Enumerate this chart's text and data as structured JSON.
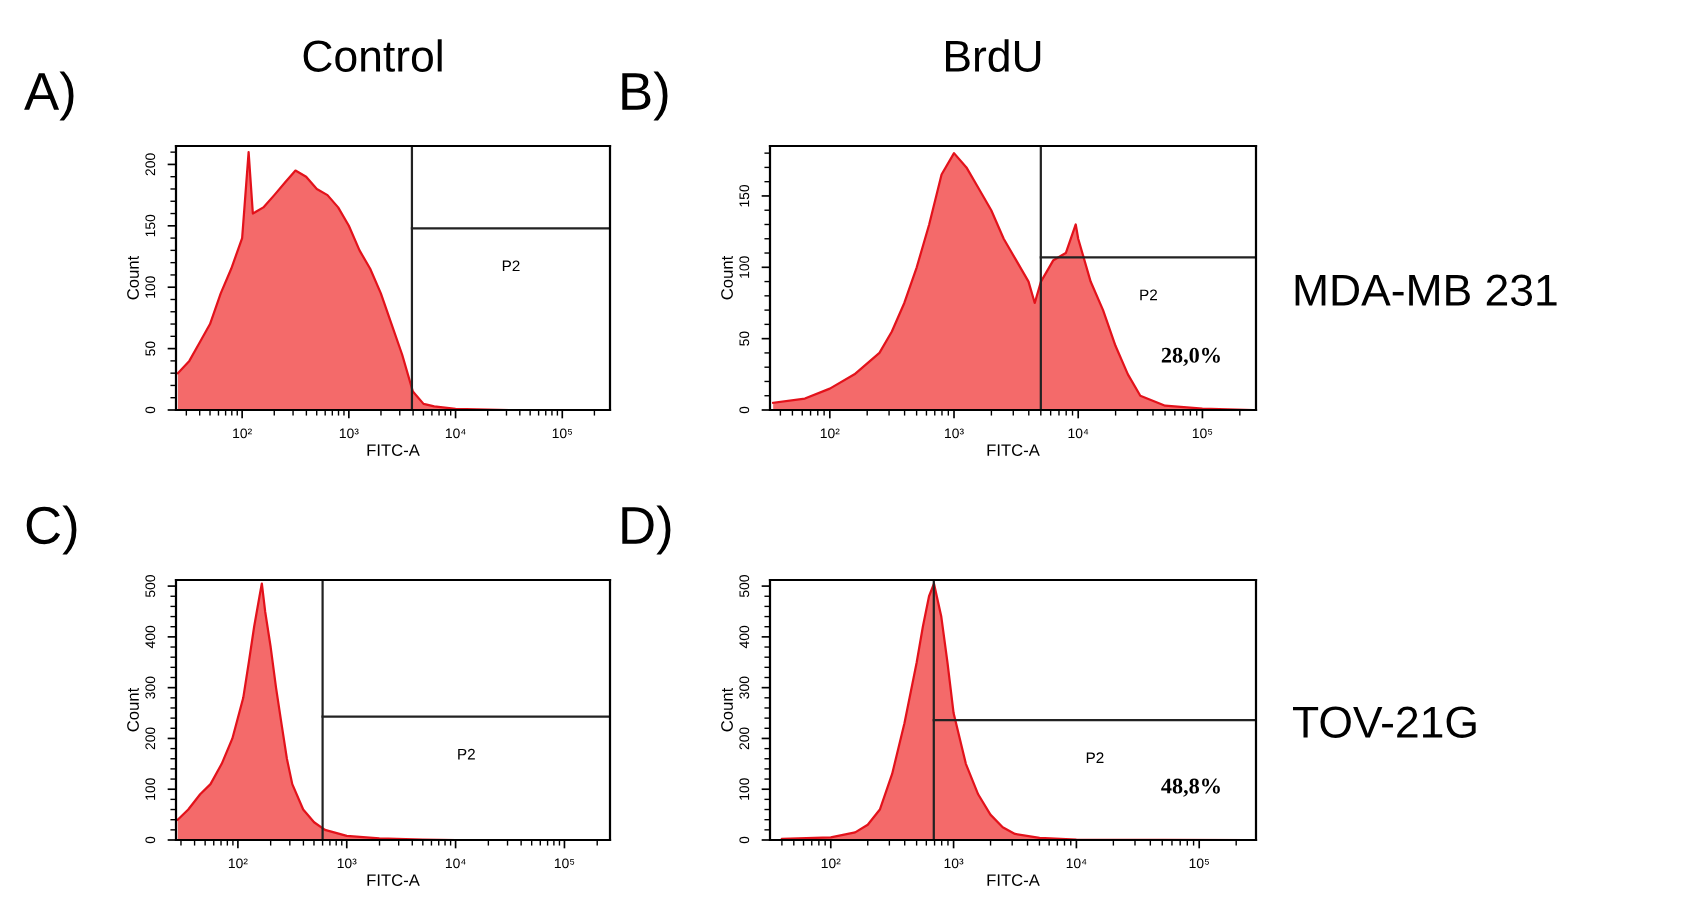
{
  "chart_data": [
    {
      "type": "area",
      "title": "A)",
      "subtitle": "Control",
      "xlabel": "FITC-A",
      "ylabel": "Count",
      "log": "x",
      "color": "#f46a6a",
      "x": [
        25,
        32,
        40,
        50,
        63,
        79,
        100,
        115,
        126,
        158,
        200,
        251,
        316,
        398,
        501,
        631,
        794,
        1000,
        1259,
        1585,
        1995,
        2512,
        3162,
        3981,
        5012,
        6310,
        10000,
        31623,
        251189
      ],
      "values": [
        30,
        40,
        55,
        70,
        95,
        115,
        140,
        210,
        160,
        165,
        175,
        185,
        195,
        190,
        180,
        175,
        165,
        150,
        130,
        115,
        95,
        70,
        45,
        15,
        5,
        3,
        1,
        0,
        0
      ],
      "xlim": [
        24,
        280000
      ],
      "xticks": [
        {
          "value": 100,
          "label": "10²"
        },
        {
          "value": 1000,
          "label": "10³"
        },
        {
          "value": 10000,
          "label": "10⁴"
        },
        {
          "value": 100000,
          "label": "10⁵"
        }
      ],
      "ylim": [
        0,
        215
      ],
      "yticks": [
        0,
        50,
        100,
        150,
        200
      ],
      "ref_lines": [
        {
          "axis": "x",
          "value": 3900,
          "label": null
        },
        {
          "axis": "y",
          "value": 148,
          "label": null
        }
      ],
      "annotations": [
        "P2"
      ]
    },
    {
      "type": "area",
      "title": "B)",
      "subtitle": "BrdU",
      "xlabel": "FITC-A",
      "ylabel": "Count",
      "log": "x",
      "color": "#f46a6a",
      "x": [
        35,
        63,
        100,
        158,
        251,
        316,
        398,
        501,
        631,
        794,
        1000,
        1259,
        1585,
        1995,
        2512,
        3162,
        3981,
        4467,
        5012,
        6310,
        7943,
        9550,
        10000,
        12589,
        15849,
        19953,
        25119,
        31623,
        50119,
        100000,
        251189
      ],
      "values": [
        5,
        8,
        15,
        25,
        40,
        55,
        75,
        100,
        130,
        165,
        180,
        170,
        155,
        140,
        120,
        105,
        90,
        75,
        90,
        105,
        110,
        130,
        120,
        90,
        70,
        45,
        25,
        10,
        3,
        1,
        0
      ],
      "xlim": [
        33,
        270000
      ],
      "xticks": [
        {
          "value": 100,
          "label": "10²"
        },
        {
          "value": 1000,
          "label": "10³"
        },
        {
          "value": 10000,
          "label": "10⁴"
        },
        {
          "value": 100000,
          "label": "10⁵"
        }
      ],
      "ylim": [
        0,
        185
      ],
      "yticks": [
        0,
        50,
        100,
        150
      ],
      "ref_lines": [
        {
          "axis": "x",
          "value": 5000,
          "label": null
        },
        {
          "axis": "y",
          "value": 107,
          "label": null
        }
      ],
      "annotations": [
        "P2",
        "28,0%",
        "MDA-MB 231"
      ]
    },
    {
      "type": "area",
      "title": "C)",
      "xlabel": "FITC-A",
      "ylabel": "Count",
      "log": "x",
      "color": "#f46a6a",
      "x": [
        28,
        35,
        45,
        56,
        71,
        89,
        112,
        126,
        141,
        158,
        166,
        178,
        200,
        224,
        251,
        282,
        316,
        398,
        501,
        631,
        1000,
        1995,
        5012,
        10000,
        251189
      ],
      "values": [
        40,
        60,
        90,
        110,
        150,
        200,
        280,
        350,
        420,
        480,
        505,
        450,
        380,
        300,
        230,
        160,
        110,
        60,
        35,
        20,
        8,
        3,
        1,
        0,
        0
      ],
      "xlim": [
        27,
        262144
      ],
      "xticks": [
        {
          "value": 100,
          "label": "10²"
        },
        {
          "value": 1000,
          "label": "10³"
        },
        {
          "value": 10000,
          "label": "10⁴"
        },
        {
          "value": 100000,
          "label": "10⁵"
        }
      ],
      "ylim": [
        0,
        512
      ],
      "yticks": [
        0,
        100,
        200,
        300,
        400,
        500
      ],
      "ref_lines": [
        {
          "axis": "x",
          "value": 600,
          "label": null
        },
        {
          "axis": "y",
          "value": 243,
          "label": null
        }
      ],
      "annotations": [
        "P2"
      ]
    },
    {
      "type": "area",
      "title": "D)",
      "xlabel": "FITC-A",
      "ylabel": "Count",
      "log": "x",
      "color": "#f46a6a",
      "x": [
        40,
        100,
        158,
        200,
        251,
        316,
        398,
        501,
        562,
        631,
        692,
        794,
        891,
        1000,
        1259,
        1585,
        1995,
        2512,
        3162,
        5012,
        10000,
        251189
      ],
      "values": [
        2,
        5,
        15,
        30,
        60,
        130,
        230,
        350,
        420,
        480,
        505,
        440,
        350,
        250,
        150,
        90,
        50,
        25,
        12,
        4,
        1,
        0
      ],
      "xlim": [
        32,
        290000
      ],
      "xticks": [
        {
          "value": 100,
          "label": "10²"
        },
        {
          "value": 1000,
          "label": "10³"
        },
        {
          "value": 10000,
          "label": "10⁴"
        },
        {
          "value": 100000,
          "label": "10⁵"
        }
      ],
      "ylim": [
        0,
        512
      ],
      "yticks": [
        0,
        100,
        200,
        300,
        400,
        500
      ],
      "ref_lines": [
        {
          "axis": "x",
          "value": 690,
          "label": null
        },
        {
          "axis": "y",
          "value": 236,
          "label": null
        }
      ],
      "annotations": [
        "P2",
        "48,8%",
        "TOV-21G"
      ]
    }
  ]
}
